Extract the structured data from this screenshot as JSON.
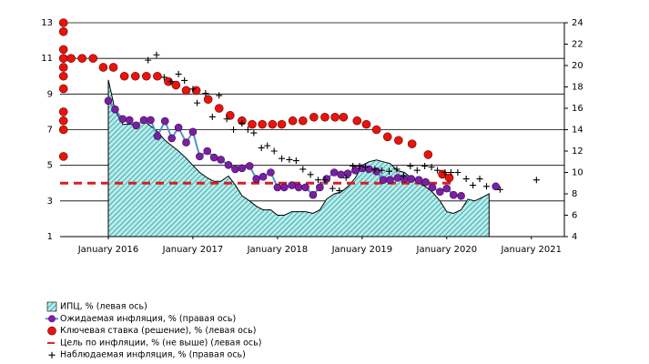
{
  "chart_data": {
    "type": "combo",
    "xlim": [
      2015.43,
      2021.39
    ],
    "xticks": [
      {
        "value": 2016,
        "label": "January 2016"
      },
      {
        "value": 2017,
        "label": "January 2017"
      },
      {
        "value": 2018,
        "label": "January 2018"
      },
      {
        "value": 2019,
        "label": "January 2019"
      },
      {
        "value": 2020,
        "label": "January 2020"
      },
      {
        "value": 2021,
        "label": "January 2021"
      }
    ],
    "ylim": [
      1,
      13
    ],
    "yticks": [
      1,
      3,
      5,
      7,
      9,
      11,
      13
    ],
    "y2lim": [
      4,
      24
    ],
    "y2ticks": [
      4,
      6,
      8,
      10,
      12,
      14,
      16,
      18,
      20,
      22,
      24
    ],
    "grid": true,
    "series": [
      {
        "name": "ИПЦ, % (левая ось)",
        "kind": "area",
        "color": "#5cc4c4",
        "x": [
          2016.0,
          2016.08,
          2016.17,
          2016.25,
          2016.33,
          2016.42,
          2016.5,
          2016.58,
          2016.67,
          2016.75,
          2016.83,
          2016.92,
          2017.0,
          2017.08,
          2017.17,
          2017.25,
          2017.33,
          2017.42,
          2017.5,
          2017.58,
          2017.67,
          2017.75,
          2017.83,
          2017.92,
          2018.0,
          2018.08,
          2018.17,
          2018.25,
          2018.33,
          2018.42,
          2018.5,
          2018.58,
          2018.67,
          2018.75,
          2018.83,
          2018.92,
          2019.0,
          2019.08,
          2019.17,
          2019.25,
          2019.33,
          2019.42,
          2019.5,
          2019.58,
          2019.67,
          2019.75,
          2019.83,
          2019.92,
          2020.0,
          2020.08,
          2020.17,
          2020.25,
          2020.33,
          2020.42,
          2020.5
        ],
        "values": [
          9.8,
          8.1,
          7.3,
          7.3,
          7.3,
          7.5,
          7.2,
          6.9,
          6.4,
          6.1,
          5.8,
          5.4,
          5.0,
          4.6,
          4.3,
          4.1,
          4.1,
          4.4,
          3.9,
          3.3,
          3.0,
          2.7,
          2.5,
          2.5,
          2.2,
          2.2,
          2.4,
          2.4,
          2.4,
          2.3,
          2.5,
          3.1,
          3.4,
          3.5,
          3.8,
          4.3,
          5.0,
          5.2,
          5.3,
          5.2,
          5.1,
          4.7,
          4.6,
          4.3,
          4.0,
          3.8,
          3.5,
          3.0,
          2.4,
          2.3,
          2.5,
          3.1,
          3.0,
          3.2,
          3.4
        ]
      },
      {
        "name": "Ожидаемая инфляция, % (правая ось)",
        "kind": "line-dots",
        "color": "#7b1fa2",
        "line_color": "#4f97c9",
        "axis": "y2",
        "x": [
          2016.0,
          2016.08,
          2016.17,
          2016.25,
          2016.33,
          2016.42,
          2016.5,
          2016.58,
          2016.67,
          2016.75,
          2016.83,
          2016.92,
          2017.0,
          2017.08,
          2017.17,
          2017.25,
          2017.33,
          2017.42,
          2017.5,
          2017.58,
          2017.67,
          2017.75,
          2017.83,
          2017.92,
          2018.0,
          2018.08,
          2018.17,
          2018.25,
          2018.33,
          2018.42,
          2018.5,
          2018.58,
          2018.67,
          2018.75,
          2018.83,
          2018.92,
          2019.0,
          2019.08,
          2019.17,
          2019.25,
          2019.33,
          2019.42,
          2019.5,
          2019.58,
          2019.67,
          2019.75,
          2019.83,
          2019.92,
          2020.0,
          2020.08,
          2020.17,
          2020.25,
          2020.33,
          2020.42,
          2020.5,
          2020.58
        ],
        "values": [
          16.7,
          15.9,
          15.0,
          14.9,
          14.4,
          14.9,
          14.9,
          13.4,
          14.8,
          13.2,
          14.2,
          12.8,
          13.8,
          11.5,
          12.0,
          11.4,
          11.2,
          10.7,
          10.3,
          10.4,
          10.6,
          9.4,
          9.6,
          10.0,
          8.6,
          8.6,
          8.8,
          8.6,
          8.6,
          7.9,
          8.6,
          9.4,
          10.0,
          9.8,
          9.9,
          10.2,
          10.4,
          10.3,
          10.1,
          9.3,
          9.3,
          9.5,
          9.4,
          9.4,
          9.3,
          9.1,
          8.6,
          8.2,
          8.5,
          7.9,
          7.8,
          null,
          null,
          null,
          null,
          8.7
        ]
      },
      {
        "name": "Ключевая ставка (решение), % (левая ось)",
        "kind": "dots",
        "color": "#e8140c",
        "x": [
          2015.47,
          2015.47,
          2015.47,
          2015.47,
          2015.47,
          2015.47,
          2015.47,
          2015.47,
          2015.47,
          2015.47,
          2015.47,
          2015.56,
          2015.69,
          2015.82,
          2015.94,
          2016.06,
          2016.19,
          2016.32,
          2016.45,
          2016.58,
          2016.71,
          2016.8,
          2016.92,
          2017.04,
          2017.18,
          2017.31,
          2017.44,
          2017.58,
          2017.7,
          2017.82,
          2017.94,
          2018.05,
          2018.18,
          2018.3,
          2018.43,
          2018.56,
          2018.68,
          2018.78,
          2018.94,
          2019.05,
          2019.17,
          2019.3,
          2019.43,
          2019.59,
          2019.78,
          2019.95,
          2020.03
        ],
        "values": [
          13,
          12.5,
          11.5,
          11,
          10.5,
          10,
          9.3,
          8,
          7.5,
          7,
          5.5,
          11,
          11,
          11,
          10.5,
          10.5,
          10,
          10,
          10,
          10,
          9.7,
          9.5,
          9.2,
          9.2,
          8.7,
          8.2,
          7.8,
          7.5,
          7.3,
          7.3,
          7.3,
          7.3,
          7.5,
          7.5,
          7.7,
          7.7,
          7.7,
          7.7,
          7.5,
          7.3,
          7.0,
          6.6,
          6.4,
          6.2,
          5.6,
          4.5,
          4.3
        ]
      },
      {
        "name": "Цель по инфляции, % (не выше) (левая ось)",
        "kind": "dashed",
        "color": "#d42020",
        "x": [
          2015.43,
          2020.1
        ],
        "values": [
          4,
          4
        ]
      },
      {
        "name": "Наблюдаемая инфляция, % (правая ось)",
        "kind": "plus",
        "color": "#000000",
        "axis": "y2",
        "x": [
          2016.47,
          2016.57,
          2016.66,
          2016.74,
          2016.83,
          2016.9,
          2017.0,
          2017.05,
          2017.15,
          2017.23,
          2017.31,
          2017.4,
          2017.48,
          2017.58,
          2017.65,
          2017.72,
          2017.81,
          2017.88,
          2017.96,
          2018.05,
          2018.14,
          2018.22,
          2018.3,
          2018.39,
          2018.48,
          2018.56,
          2018.65,
          2018.73,
          2018.81,
          2018.89,
          2018.97,
          2019.04,
          2019.15,
          2019.23,
          2019.32,
          2019.41,
          2019.49,
          2019.57,
          2019.65,
          2019.74,
          2019.82,
          2019.89,
          2019.98,
          2020.05,
          2020.13,
          2020.23,
          2020.31,
          2020.39,
          2020.47,
          2020.63,
          2021.06
        ],
        "values": [
          20.5,
          21.0,
          18.9,
          18.5,
          19.2,
          18.6,
          17.8,
          16.5,
          17.4,
          15.2,
          17.2,
          15.0,
          14.0,
          14.6,
          14.0,
          13.7,
          12.3,
          12.5,
          12.0,
          11.3,
          11.2,
          11.1,
          10.3,
          9.8,
          9.3,
          9.3,
          8.5,
          8.3,
          9.5,
          10.6,
          10.6,
          10.5,
          10.3,
          10.2,
          10.1,
          10.3,
          9.7,
          10.6,
          10.2,
          10.6,
          10.5,
          10.2,
          10.0,
          10.0,
          10.0,
          9.4,
          8.8,
          9.4,
          8.7,
          8.4,
          9.3
        ]
      }
    ]
  }
}
